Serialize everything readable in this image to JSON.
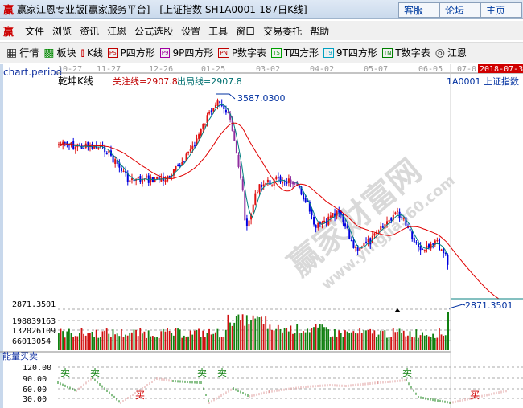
{
  "window": {
    "title": "赢家江恩专业版[赢家服务平台] - [上证指数  SH1A0001-187日K线]",
    "buttons": [
      "客服",
      "论坛",
      "主页"
    ],
    "logo": "赢"
  },
  "menu": [
    "文件",
    "浏览",
    "资讯",
    "江恩",
    "公式选股",
    "设置",
    "工具",
    "窗口",
    "交易委托",
    "帮助"
  ],
  "toolbar": [
    {
      "label": "行情",
      "icon": "grid-icon"
    },
    {
      "label": "板块",
      "icon": "blocks-icon"
    },
    {
      "label": "K线",
      "icon": "candles-icon"
    },
    {
      "label": "P四方形",
      "icon": "PS",
      "color": "#c00000"
    },
    {
      "label": "9P四方形",
      "icon": "P9",
      "color": "#a000a0"
    },
    {
      "label": "P数字表",
      "icon": "PN",
      "color": "#c00000"
    },
    {
      "label": "T四方形",
      "icon": "TS",
      "color": "#00a000"
    },
    {
      "label": "9T四方形",
      "icon": "T9",
      "color": "#00a0c0"
    },
    {
      "label": "T数字表",
      "icon": "TN",
      "color": "#008000"
    },
    {
      "label": "江恩",
      "icon": "target-icon"
    }
  ],
  "chart": {
    "period": "日K线",
    "dates": [
      "10-27",
      "11-27",
      "12-26",
      "01-25",
      "03-02",
      "04-02",
      "05-07",
      "06-05",
      "07-0"
    ],
    "current_date": "2018-07-31",
    "indicator_name": "乾坤K线",
    "focus_line": "关注线=2907.8",
    "exit_line": "出局线=2907.8",
    "symbol": "1A0001  上证指数",
    "high_label": "3587.0300",
    "low_label": "2871.3501",
    "low_axis": "2871.3501",
    "volume_axis": [
      "198039163",
      "132026109",
      "66013054"
    ],
    "indicator": {
      "name": "能量买卖",
      "axis": [
        "120.00",
        "90.00",
        "60.00",
        "30.00"
      ],
      "sell_label": "卖",
      "buy_label": "买"
    },
    "colors": {
      "up": "#e01010",
      "down": "#0000e0",
      "ma": "#e00000",
      "ma_fast": "#008080",
      "vol_up": "#d01010",
      "vol_down": "#108010"
    },
    "watermark": "赢家财富网",
    "watermark_url": "www.yingjia360.com"
  }
}
